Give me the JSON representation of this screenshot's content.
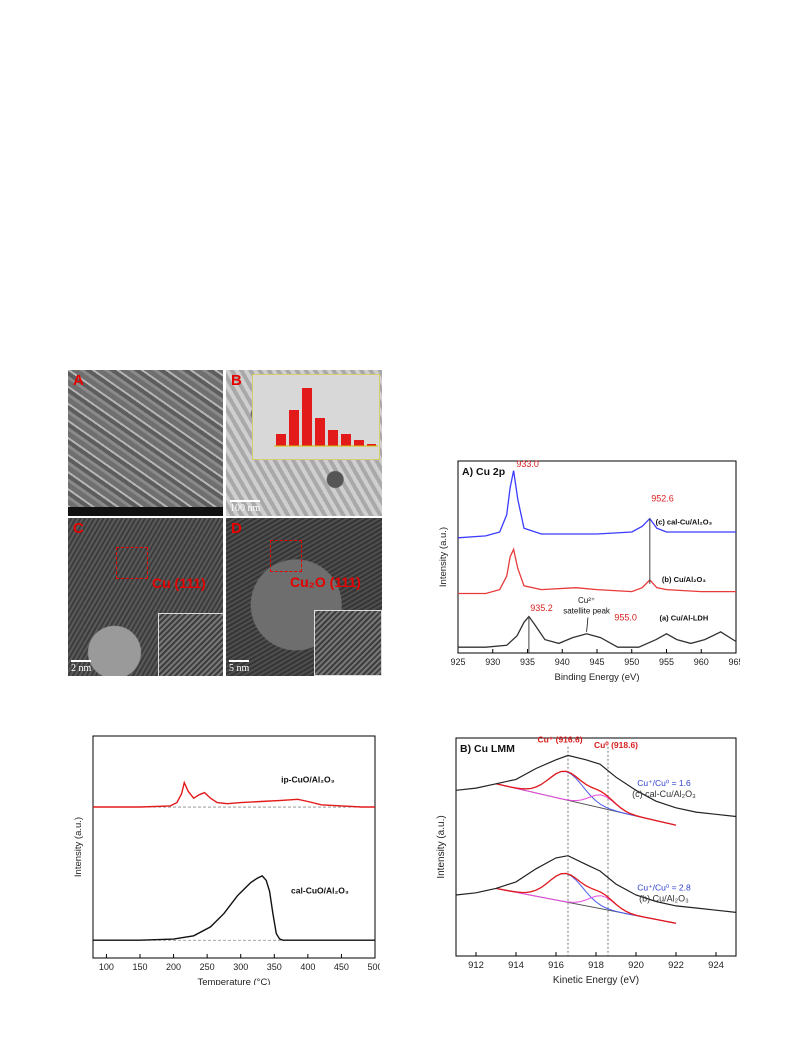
{
  "tem_panels": {
    "A": {
      "label": "A"
    },
    "B": {
      "label": "B",
      "scale": "100 nm"
    },
    "C": {
      "label": "C",
      "plane": "Cu (111)",
      "scale": "2 nm"
    },
    "D": {
      "label": "D",
      "plane": "Cu₂O (111)",
      "scale": "5 nm"
    }
  },
  "chart_data": [
    {
      "id": "xps_cu2p",
      "type": "line",
      "title": "A) Cu 2p",
      "xlabel": "Binding Energy (eV)",
      "ylabel": "Intensity (a.u.)",
      "xlim": [
        925,
        965
      ],
      "x_ticks": [
        925,
        930,
        935,
        940,
        945,
        950,
        955,
        960,
        965
      ],
      "series": [
        {
          "name": "(c) cal-Cu/Al₂O₃",
          "color": "#3b3bff",
          "x": [
            925,
            929,
            931,
            932,
            932.5,
            933.0,
            933.6,
            934.5,
            937,
            945,
            950,
            951.5,
            952.6,
            953.6,
            955,
            960,
            965
          ],
          "y": [
            0.6,
            0.61,
            0.63,
            0.72,
            0.86,
            0.95,
            0.8,
            0.65,
            0.62,
            0.62,
            0.63,
            0.66,
            0.7,
            0.65,
            0.63,
            0.63,
            0.63
          ]
        },
        {
          "name": "(b) Cu/Al₂O₃",
          "color": "#e83a3a",
          "x": [
            925,
            929,
            931,
            932,
            932.5,
            933.0,
            933.6,
            934.5,
            937,
            942,
            945,
            950,
            951.5,
            952.6,
            953.6,
            955,
            960,
            965
          ],
          "y": [
            0.31,
            0.31,
            0.33,
            0.4,
            0.5,
            0.54,
            0.44,
            0.35,
            0.33,
            0.34,
            0.33,
            0.32,
            0.34,
            0.38,
            0.34,
            0.33,
            0.32,
            0.32
          ]
        },
        {
          "name": "(a) Cu/Al-LDH",
          "color": "#333333",
          "x": [
            925,
            929,
            932,
            933.5,
            934.5,
            935.2,
            936,
            937.5,
            939.5,
            941.5,
            943.5,
            945.5,
            948,
            951,
            953.5,
            955.0,
            956.5,
            958.5,
            960.5,
            962.8,
            965
          ],
          "y": [
            0.03,
            0.03,
            0.04,
            0.09,
            0.16,
            0.19,
            0.15,
            0.07,
            0.05,
            0.08,
            0.1,
            0.08,
            0.03,
            0.03,
            0.07,
            0.1,
            0.07,
            0.05,
            0.07,
            0.11,
            0.06
          ]
        }
      ],
      "annotations": [
        {
          "text": "933.0",
          "x": 933.0,
          "color": "#d92020"
        },
        {
          "text": "952.6",
          "x": 952.6,
          "color": "#d92020"
        },
        {
          "text": "935.2",
          "x": 935.2,
          "color": "#d92020"
        },
        {
          "text": "955.0",
          "x": 955.0,
          "color": "#d92020"
        },
        {
          "text": "Cu²⁺",
          "x": 943.5
        },
        {
          "text": "satellite peak",
          "x": 943.5
        }
      ],
      "grid": false
    },
    {
      "id": "tpr",
      "type": "line",
      "xlabel": "Temperature (°C)",
      "ylabel": "Intensity (a.u.)",
      "xlim": [
        80,
        500
      ],
      "x_ticks": [
        100,
        150,
        200,
        250,
        300,
        350,
        400,
        450,
        500
      ],
      "series": [
        {
          "name": "ip-CuO/Al₂O₃",
          "color": "#e31a1a",
          "x": [
            80,
            150,
            195,
            205,
            212,
            216,
            222,
            230,
            238,
            246,
            255,
            265,
            280,
            300,
            330,
            360,
            385,
            400,
            420,
            450,
            480,
            500
          ],
          "y": [
            0.68,
            0.68,
            0.685,
            0.7,
            0.74,
            0.79,
            0.75,
            0.72,
            0.735,
            0.745,
            0.72,
            0.7,
            0.695,
            0.7,
            0.705,
            0.71,
            0.715,
            0.705,
            0.69,
            0.685,
            0.68,
            0.68
          ]
        },
        {
          "name": "cal-CuO/Al₂O₃",
          "color": "#111111",
          "x": [
            80,
            150,
            200,
            230,
            255,
            275,
            295,
            315,
            325,
            332,
            338,
            343,
            348,
            353,
            358,
            363,
            380,
            450,
            500
          ],
          "y": [
            0.08,
            0.08,
            0.085,
            0.1,
            0.14,
            0.2,
            0.28,
            0.34,
            0.36,
            0.37,
            0.35,
            0.3,
            0.2,
            0.11,
            0.085,
            0.08,
            0.08,
            0.08,
            0.08
          ]
        }
      ],
      "grid": false
    },
    {
      "id": "xaes_cu_lmm",
      "type": "line",
      "title": "B) Cu LMM",
      "xlabel": "Kinetic Energy (eV)",
      "ylabel": "Intensity (a.u.)",
      "xlim": [
        911,
        925
      ],
      "x_ticks": [
        912,
        914,
        916,
        918,
        920,
        922,
        924
      ],
      "peaks": [
        {
          "label": "Cu⁺ (916.6)",
          "x": 916.6,
          "color": "#d92020"
        },
        {
          "label": "Cu⁰ (918.6)",
          "x": 918.6,
          "color": "#d92020"
        }
      ],
      "series": [
        {
          "name": "(c) cal-Cu/Al₂O₃",
          "ratio": "Cu⁺/Cu⁰ = 1.6",
          "color": "#222222",
          "x": [
            911,
            912,
            913,
            914,
            915,
            916,
            916.6,
            917.5,
            918.2,
            919,
            920,
            921,
            922,
            923,
            924,
            925
          ],
          "y": [
            0.76,
            0.77,
            0.79,
            0.81,
            0.86,
            0.9,
            0.92,
            0.9,
            0.88,
            0.82,
            0.76,
            0.71,
            0.68,
            0.66,
            0.65,
            0.64
          ]
        },
        {
          "name": "(b) Cu/Al₂O₃",
          "ratio": "Cu⁺/Cu⁰ = 2.8",
          "color": "#222222",
          "x": [
            911,
            912,
            913,
            914,
            915,
            916,
            916.6,
            917.5,
            918.2,
            919,
            920,
            921,
            922,
            923,
            924,
            925
          ],
          "y": [
            0.28,
            0.29,
            0.31,
            0.34,
            0.4,
            0.45,
            0.46,
            0.42,
            0.39,
            0.33,
            0.28,
            0.25,
            0.23,
            0.22,
            0.21,
            0.2
          ]
        }
      ],
      "grid": false
    }
  ]
}
